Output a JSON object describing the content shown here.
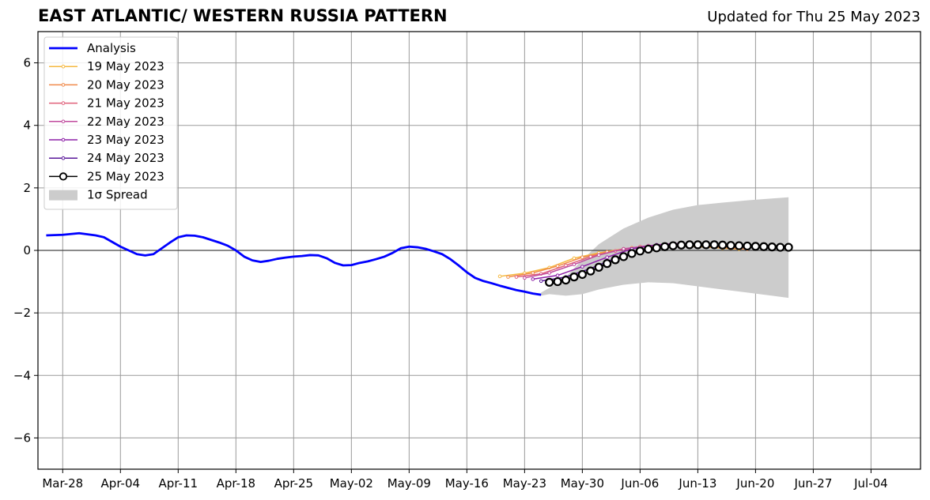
{
  "chart_data": {
    "type": "line",
    "title": "EAST ATLANTIC/ WESTERN RUSSIA PATTERN",
    "subtitle": "Updated for Thu 25 May 2023",
    "xlabel": "",
    "ylabel": "",
    "xlim": [
      "2023-03-25",
      "2023-07-10"
    ],
    "ylim": [
      -7,
      7
    ],
    "x_ticks": [
      "2023-03-28",
      "2023-04-04",
      "2023-04-11",
      "2023-04-18",
      "2023-04-25",
      "2023-05-02",
      "2023-05-09",
      "2023-05-16",
      "2023-05-23",
      "2023-05-30",
      "2023-06-06",
      "2023-06-13",
      "2023-06-20",
      "2023-06-27",
      "2023-07-04"
    ],
    "x_tick_labels": [
      "Mar-28",
      "Apr-04",
      "Apr-11",
      "Apr-18",
      "Apr-25",
      "May-02",
      "May-09",
      "May-16",
      "May-23",
      "May-30",
      "Jun-06",
      "Jun-13",
      "Jun-20",
      "Jun-27",
      "Jul-04"
    ],
    "y_ticks": [
      -6,
      -4,
      -2,
      0,
      2,
      4,
      6
    ],
    "y_tick_labels": [
      "−6",
      "−4",
      "−2",
      "0",
      "2",
      "4",
      "6"
    ],
    "grid": true,
    "zero_line": true,
    "legend_position": "top-left",
    "analysis": {
      "name": "Analysis",
      "color": "#0000ff",
      "points": [
        [
          "2023-03-26",
          0.48
        ],
        [
          "2023-03-28",
          0.5
        ],
        [
          "2023-03-30",
          0.55
        ],
        [
          "2023-04-01",
          0.48
        ],
        [
          "2023-04-02",
          0.42
        ],
        [
          "2023-04-04",
          0.12
        ],
        [
          "2023-04-05",
          0.0
        ],
        [
          "2023-04-06",
          -0.12
        ],
        [
          "2023-04-07",
          -0.16
        ],
        [
          "2023-04-08",
          -0.12
        ],
        [
          "2023-04-10",
          0.25
        ],
        [
          "2023-04-11",
          0.42
        ],
        [
          "2023-04-12",
          0.48
        ],
        [
          "2023-04-13",
          0.47
        ],
        [
          "2023-04-14",
          0.42
        ],
        [
          "2023-04-16",
          0.25
        ],
        [
          "2023-04-17",
          0.15
        ],
        [
          "2023-04-18",
          0.0
        ],
        [
          "2023-04-19",
          -0.2
        ],
        [
          "2023-04-20",
          -0.32
        ],
        [
          "2023-04-21",
          -0.37
        ],
        [
          "2023-04-22",
          -0.33
        ],
        [
          "2023-04-23",
          -0.27
        ],
        [
          "2023-04-24",
          -0.23
        ],
        [
          "2023-04-25",
          -0.2
        ],
        [
          "2023-04-26",
          -0.18
        ],
        [
          "2023-04-27",
          -0.15
        ],
        [
          "2023-04-28",
          -0.16
        ],
        [
          "2023-04-29",
          -0.25
        ],
        [
          "2023-04-30",
          -0.4
        ],
        [
          "2023-05-01",
          -0.48
        ],
        [
          "2023-05-02",
          -0.47
        ],
        [
          "2023-05-03",
          -0.4
        ],
        [
          "2023-05-04",
          -0.35
        ],
        [
          "2023-05-05",
          -0.28
        ],
        [
          "2023-05-06",
          -0.2
        ],
        [
          "2023-05-07",
          -0.08
        ],
        [
          "2023-05-08",
          0.07
        ],
        [
          "2023-05-09",
          0.12
        ],
        [
          "2023-05-10",
          0.1
        ],
        [
          "2023-05-11",
          0.05
        ],
        [
          "2023-05-12",
          -0.03
        ],
        [
          "2023-05-13",
          -0.12
        ],
        [
          "2023-05-14",
          -0.28
        ],
        [
          "2023-05-15",
          -0.48
        ],
        [
          "2023-05-16",
          -0.7
        ],
        [
          "2023-05-17",
          -0.88
        ],
        [
          "2023-05-18",
          -0.98
        ],
        [
          "2023-05-19",
          -1.05
        ],
        [
          "2023-05-20",
          -1.13
        ],
        [
          "2023-05-21",
          -1.2
        ],
        [
          "2023-05-22",
          -1.27
        ],
        [
          "2023-05-23",
          -1.32
        ],
        [
          "2023-05-24",
          -1.38
        ],
        [
          "2023-05-25",
          -1.42
        ]
      ]
    },
    "spread": {
      "name": "1σ Spread",
      "color": "#cccccc",
      "points": [
        [
          "2023-05-25",
          -1.45,
          -1.35
        ],
        [
          "2023-05-26",
          -1.4,
          -1.2
        ],
        [
          "2023-05-28",
          -1.45,
          -0.85
        ],
        [
          "2023-05-30",
          -1.4,
          -0.3
        ],
        [
          "2023-06-01",
          -1.25,
          0.2
        ],
        [
          "2023-06-04",
          -1.1,
          0.7
        ],
        [
          "2023-06-07",
          -1.02,
          1.05
        ],
        [
          "2023-06-10",
          -1.05,
          1.3
        ],
        [
          "2023-06-13",
          -1.15,
          1.45
        ],
        [
          "2023-06-16",
          -1.25,
          1.53
        ],
        [
          "2023-06-19",
          -1.35,
          1.6
        ],
        [
          "2023-06-22",
          -1.45,
          1.66
        ],
        [
          "2023-06-24",
          -1.52,
          1.7
        ]
      ]
    },
    "forecasts": [
      {
        "name": "19 May 2023",
        "color": "#f5b942",
        "points": [
          [
            "2023-05-20",
            -0.83
          ],
          [
            "2023-05-23",
            -0.73
          ],
          [
            "2023-05-26",
            -0.55
          ],
          [
            "2023-05-29",
            -0.25
          ],
          [
            "2023-06-01",
            -0.08
          ],
          [
            "2023-06-04",
            0.05
          ],
          [
            "2023-06-07",
            0.12
          ],
          [
            "2023-06-10",
            0.15
          ],
          [
            "2023-06-13",
            0.12
          ],
          [
            "2023-06-16",
            0.07
          ],
          [
            "2023-06-18",
            0.04
          ]
        ]
      },
      {
        "name": "20 May 2023",
        "color": "#f08a4b",
        "points": [
          [
            "2023-05-21",
            -0.85
          ],
          [
            "2023-05-24",
            -0.72
          ],
          [
            "2023-05-27",
            -0.5
          ],
          [
            "2023-05-30",
            -0.22
          ],
          [
            "2023-06-02",
            -0.05
          ],
          [
            "2023-06-05",
            0.08
          ],
          [
            "2023-06-08",
            0.14
          ],
          [
            "2023-06-11",
            0.15
          ],
          [
            "2023-06-14",
            0.12
          ],
          [
            "2023-06-17",
            0.07
          ],
          [
            "2023-06-19",
            0.04
          ]
        ]
      },
      {
        "name": "21 May 2023",
        "color": "#e0607a",
        "points": [
          [
            "2023-05-22",
            -0.85
          ],
          [
            "2023-05-25",
            -0.75
          ],
          [
            "2023-05-28",
            -0.48
          ],
          [
            "2023-05-31",
            -0.2
          ],
          [
            "2023-06-03",
            -0.02
          ],
          [
            "2023-06-06",
            0.12
          ],
          [
            "2023-06-09",
            0.2
          ],
          [
            "2023-06-12",
            0.2
          ],
          [
            "2023-06-15",
            0.16
          ],
          [
            "2023-06-18",
            0.12
          ],
          [
            "2023-06-20",
            0.1
          ]
        ]
      },
      {
        "name": "22 May 2023",
        "color": "#c04a9e",
        "points": [
          [
            "2023-05-23",
            -0.88
          ],
          [
            "2023-05-26",
            -0.72
          ],
          [
            "2023-05-29",
            -0.45
          ],
          [
            "2023-06-01",
            -0.15
          ],
          [
            "2023-06-04",
            0.05
          ],
          [
            "2023-06-07",
            0.15
          ],
          [
            "2023-06-10",
            0.22
          ],
          [
            "2023-06-13",
            0.22
          ],
          [
            "2023-06-16",
            0.18
          ],
          [
            "2023-06-19",
            0.14
          ],
          [
            "2023-06-21",
            0.12
          ]
        ]
      },
      {
        "name": "23 May 2023",
        "color": "#8e20a8",
        "points": [
          [
            "2023-05-24",
            -0.92
          ],
          [
            "2023-05-27",
            -0.8
          ],
          [
            "2023-05-30",
            -0.52
          ],
          [
            "2023-06-02",
            -0.22
          ],
          [
            "2023-06-05",
            0.05
          ],
          [
            "2023-06-08",
            0.18
          ],
          [
            "2023-06-11",
            0.22
          ],
          [
            "2023-06-14",
            0.2
          ],
          [
            "2023-06-17",
            0.16
          ],
          [
            "2023-06-20",
            0.13
          ],
          [
            "2023-06-22",
            0.12
          ]
        ]
      },
      {
        "name": "24 May 2023",
        "color": "#5a189a",
        "points": [
          [
            "2023-05-25",
            -0.98
          ],
          [
            "2023-05-28",
            -0.85
          ],
          [
            "2023-05-31",
            -0.58
          ],
          [
            "2023-06-03",
            -0.25
          ],
          [
            "2023-06-06",
            0.0
          ],
          [
            "2023-06-09",
            0.12
          ],
          [
            "2023-06-12",
            0.18
          ],
          [
            "2023-06-15",
            0.17
          ],
          [
            "2023-06-18",
            0.14
          ],
          [
            "2023-06-21",
            0.12
          ],
          [
            "2023-06-23",
            0.11
          ]
        ]
      },
      {
        "name": "25 May 2023",
        "color": "#000000",
        "markers": "open-circle",
        "points": [
          [
            "2023-05-26",
            -1.02
          ],
          [
            "2023-05-27",
            -1.0
          ],
          [
            "2023-05-28",
            -0.95
          ],
          [
            "2023-05-29",
            -0.85
          ],
          [
            "2023-05-30",
            -0.77
          ],
          [
            "2023-05-31",
            -0.66
          ],
          [
            "2023-06-01",
            -0.54
          ],
          [
            "2023-06-02",
            -0.42
          ],
          [
            "2023-06-03",
            -0.3
          ],
          [
            "2023-06-04",
            -0.2
          ],
          [
            "2023-06-05",
            -0.1
          ],
          [
            "2023-06-06",
            -0.02
          ],
          [
            "2023-06-07",
            0.04
          ],
          [
            "2023-06-08",
            0.08
          ],
          [
            "2023-06-09",
            0.12
          ],
          [
            "2023-06-10",
            0.15
          ],
          [
            "2023-06-11",
            0.17
          ],
          [
            "2023-06-12",
            0.18
          ],
          [
            "2023-06-13",
            0.18
          ],
          [
            "2023-06-14",
            0.18
          ],
          [
            "2023-06-15",
            0.18
          ],
          [
            "2023-06-16",
            0.17
          ],
          [
            "2023-06-17",
            0.16
          ],
          [
            "2023-06-18",
            0.15
          ],
          [
            "2023-06-19",
            0.14
          ],
          [
            "2023-06-20",
            0.13
          ],
          [
            "2023-06-21",
            0.12
          ],
          [
            "2023-06-22",
            0.11
          ],
          [
            "2023-06-23",
            0.1
          ],
          [
            "2023-06-24",
            0.1
          ]
        ]
      }
    ]
  }
}
